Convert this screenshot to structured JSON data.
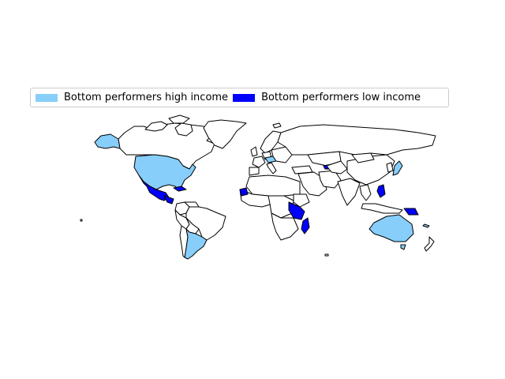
{
  "legend": {
    "items": [
      {
        "label": "Bottom performers high income",
        "color": "#87CEFA"
      },
      {
        "label": "Bottom performers low income",
        "color": "#0000FF"
      }
    ]
  },
  "map": {
    "land_fill": "#ffffff",
    "border_color": "#000000",
    "highlighted_countries": {
      "high_income": [
        "United States",
        "Argentina",
        "Australia",
        "Alaska (US)",
        "Austria",
        "Japan",
        "New Caledonia"
      ],
      "low_income": [
        "Mexico",
        "Guatemala",
        "Honduras",
        "Nicaragua",
        "Cuba",
        "Haiti",
        "Guinea",
        "Sierra Leone",
        "Uganda",
        "Kenya",
        "Tanzania",
        "Madagascar",
        "Georgia",
        "Philippines",
        "Papua New Guinea"
      ]
    }
  }
}
